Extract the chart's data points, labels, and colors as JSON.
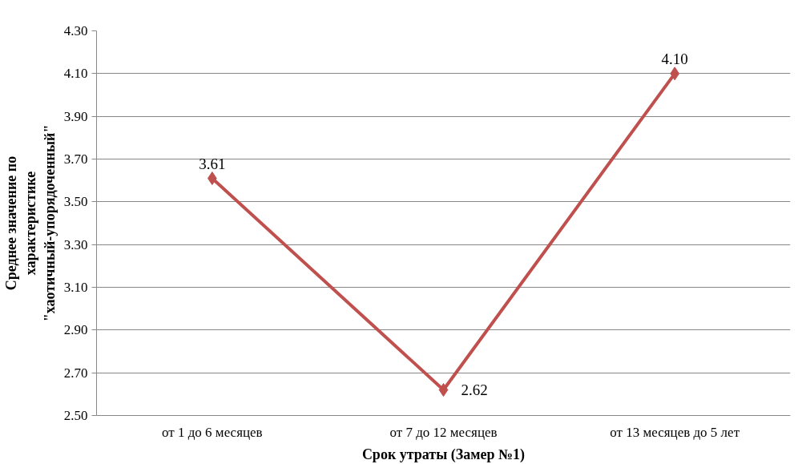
{
  "chart_data": {
    "type": "line",
    "xlabel": "Срок утраты (Замер №1)",
    "ylabel": "Среднее значение по\nхарактеристике\n\"хаотичный-упорядоченный\"",
    "categories": [
      "от 1 до 6 месяцев",
      "от 7 до 12 месяцев",
      "от 13 месяцев до 5 лет"
    ],
    "series": [
      {
        "color": "#c0504d",
        "values": [
          3.61,
          2.62,
          4.1
        ],
        "value_labels": [
          "3.61",
          "2.62",
          "4.10"
        ]
      }
    ],
    "ylim": [
      2.5,
      4.3
    ],
    "yticks": [
      {
        "value": 2.5,
        "label": "2.50"
      },
      {
        "value": 2.7,
        "label": "2.70"
      },
      {
        "value": 2.9,
        "label": "2.90"
      },
      {
        "value": 3.1,
        "label": "3.10"
      },
      {
        "value": 3.3,
        "label": "3.30"
      },
      {
        "value": 3.5,
        "label": "3.50"
      },
      {
        "value": 3.7,
        "label": "3.70"
      },
      {
        "value": 3.9,
        "label": "3.90"
      },
      {
        "value": 4.1,
        "label": "4.10"
      },
      {
        "value": 4.3,
        "label": "4.30"
      }
    ],
    "grid": "y",
    "marker": "diamond",
    "line_style": "solid"
  }
}
